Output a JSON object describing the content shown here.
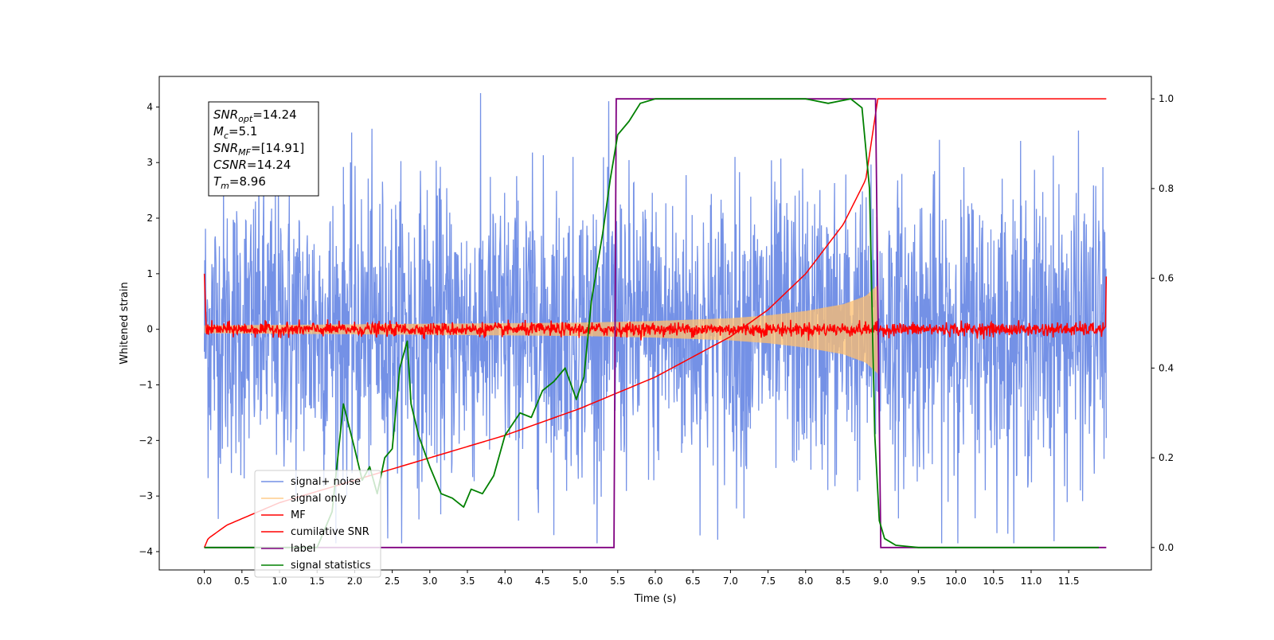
{
  "chart_data": {
    "type": "line",
    "xlabel": "Time (s)",
    "ylabel": "Whitened strain",
    "xlim": [
      -0.6,
      12.6
    ],
    "ylim": [
      -4.33,
      4.55
    ],
    "ylim_right": [
      -0.05,
      1.05
    ],
    "x_ticks": [
      0.0,
      0.5,
      1.0,
      1.5,
      2.0,
      2.5,
      3.0,
      3.5,
      4.0,
      4.5,
      5.0,
      5.5,
      6.0,
      6.5,
      7.0,
      7.5,
      8.0,
      8.5,
      9.0,
      9.5,
      10.0,
      10.5,
      11.0,
      11.5
    ],
    "x_tick_labels": [
      "0.0",
      "0.5",
      "1.0",
      "1.5",
      "2.0",
      "2.5",
      "3.0",
      "3.5",
      "4.0",
      "4.5",
      "5.0",
      "5.5",
      "6.0",
      "6.5",
      "7.0",
      "7.5",
      "8.0",
      "8.5",
      "9.0",
      "9.5",
      "10.0",
      "10.5",
      "11.0",
      "11.5"
    ],
    "y_ticks": [
      -4,
      -3,
      -2,
      -1,
      0,
      1,
      2,
      3,
      4
    ],
    "y_tick_labels": [
      "−4",
      "−3",
      "−2",
      "−1",
      "0",
      "1",
      "2",
      "3",
      "4"
    ],
    "y2_ticks": [
      0.0,
      0.2,
      0.4,
      0.6,
      0.8,
      1.0
    ],
    "y2_tick_labels": [
      "0.0",
      "0.2",
      "0.4",
      "0.6",
      "0.8",
      "1.0"
    ],
    "grid": false,
    "legend_position": "lower-left",
    "annotation": {
      "lines": [
        {
          "sym": "SNR",
          "sub": "opt",
          "value": "=14.24"
        },
        {
          "sym": "M",
          "sub": "c",
          "value": "=5.1"
        },
        {
          "sym": "SNR",
          "sub": "MF",
          "value": "=[14.91]"
        },
        {
          "sym": "CSNR",
          "sub": "",
          "value": "=14.24"
        },
        {
          "sym": "T",
          "sub": "m",
          "value": "=8.96"
        }
      ]
    },
    "series": [
      {
        "name": "signal+ noise",
        "color": "#7491e6",
        "axis": "left",
        "noise_amplitude": 1.3,
        "t_start": 0.0,
        "t_end": 12.0
      },
      {
        "name": "signal only",
        "color": "#ffbf6e",
        "axis": "left",
        "envelope_x": [
          0.0,
          1.0,
          2.0,
          3.0,
          4.0,
          5.0,
          6.0,
          7.0,
          7.5,
          8.0,
          8.5,
          8.8,
          8.96
        ],
        "envelope_y": [
          0.07,
          0.08,
          0.09,
          0.1,
          0.11,
          0.12,
          0.15,
          0.2,
          0.25,
          0.33,
          0.45,
          0.6,
          0.8
        ]
      },
      {
        "name": "MF",
        "color": "#ff0000",
        "axis": "left",
        "noise_amplitude": 0.1,
        "start_value": 1.0,
        "end_value": 0.95
      },
      {
        "name": "cumilative SNR",
        "color": "#ff0000",
        "axis": "right",
        "x": [
          0.0,
          0.05,
          0.3,
          1.0,
          2.0,
          3.0,
          4.0,
          5.0,
          6.0,
          7.0,
          7.5,
          8.0,
          8.5,
          8.8,
          8.96,
          12.0
        ],
        "y": [
          0.0,
          0.02,
          0.05,
          0.1,
          0.15,
          0.2,
          0.25,
          0.31,
          0.38,
          0.47,
          0.53,
          0.61,
          0.72,
          0.82,
          1.0,
          1.0
        ]
      },
      {
        "name": "label",
        "color": "#800080",
        "axis": "right",
        "x": [
          0.0,
          5.45,
          5.48,
          8.93,
          9.0,
          12.0
        ],
        "y": [
          0.0,
          0.0,
          1.0,
          1.0,
          0.0,
          0.0
        ]
      },
      {
        "name": "signal statistics",
        "color": "#008000",
        "axis": "right",
        "x": [
          0.0,
          1.5,
          1.7,
          1.85,
          2.0,
          2.1,
          2.2,
          2.3,
          2.4,
          2.5,
          2.6,
          2.7,
          2.75,
          2.85,
          3.0,
          3.15,
          3.3,
          3.45,
          3.55,
          3.7,
          3.85,
          4.0,
          4.2,
          4.35,
          4.5,
          4.65,
          4.8,
          4.95,
          5.05,
          5.15,
          5.3,
          5.4,
          5.5,
          5.65,
          5.8,
          6.0,
          6.3,
          6.7,
          7.0,
          7.5,
          8.0,
          8.3,
          8.6,
          8.75,
          8.85,
          8.92,
          8.98,
          9.05,
          9.2,
          9.5,
          10.0,
          11.0,
          11.9
        ],
        "y": [
          0.0,
          0.0,
          0.08,
          0.32,
          0.22,
          0.15,
          0.18,
          0.12,
          0.2,
          0.22,
          0.4,
          0.46,
          0.32,
          0.25,
          0.18,
          0.12,
          0.11,
          0.09,
          0.13,
          0.12,
          0.16,
          0.25,
          0.3,
          0.29,
          0.35,
          0.37,
          0.4,
          0.33,
          0.38,
          0.55,
          0.7,
          0.82,
          0.92,
          0.95,
          0.99,
          1.0,
          1.0,
          1.0,
          1.0,
          1.0,
          1.0,
          0.99,
          1.0,
          0.98,
          0.8,
          0.25,
          0.06,
          0.02,
          0.005,
          0.0,
          0.0,
          0.0,
          0.0
        ]
      }
    ]
  }
}
